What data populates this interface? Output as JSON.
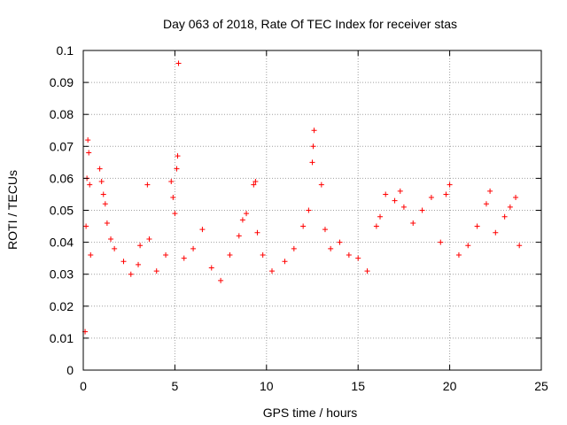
{
  "chart_data": {
    "type": "scatter",
    "title": "Day 063 of 2018, Rate Of TEC Index for receiver stas",
    "xlabel": "GPS time / hours",
    "ylabel": "ROTI / TECUs",
    "xlim": [
      0,
      25
    ],
    "ylim": [
      0,
      0.1
    ],
    "xticks": [
      {
        "value": 0,
        "label": "0"
      },
      {
        "value": 5,
        "label": "5"
      },
      {
        "value": 10,
        "label": "10"
      },
      {
        "value": 15,
        "label": "15"
      },
      {
        "value": 20,
        "label": "20"
      },
      {
        "value": 25,
        "label": "25"
      }
    ],
    "yticks": [
      {
        "value": 0,
        "label": "0"
      },
      {
        "value": 0.01,
        "label": "0.01"
      },
      {
        "value": 0.02,
        "label": "0.02"
      },
      {
        "value": 0.03,
        "label": "0.03"
      },
      {
        "value": 0.04,
        "label": "0.04"
      },
      {
        "value": 0.05,
        "label": "0.05"
      },
      {
        "value": 0.06,
        "label": "0.06"
      },
      {
        "value": 0.07,
        "label": "0.07"
      },
      {
        "value": 0.08,
        "label": "0.08"
      },
      {
        "value": 0.09,
        "label": "0.09"
      },
      {
        "value": 0.1,
        "label": "0.1"
      }
    ],
    "grid": true,
    "marker": "+",
    "color": "#ff0000",
    "series": [
      {
        "name": "stas",
        "points": [
          [
            0.1,
            0.012
          ],
          [
            0.15,
            0.045
          ],
          [
            0.2,
            0.06
          ],
          [
            0.25,
            0.072
          ],
          [
            0.3,
            0.068
          ],
          [
            0.35,
            0.058
          ],
          [
            0.4,
            0.036
          ],
          [
            0.9,
            0.063
          ],
          [
            1.0,
            0.059
          ],
          [
            1.1,
            0.055
          ],
          [
            1.2,
            0.052
          ],
          [
            1.3,
            0.046
          ],
          [
            1.5,
            0.041
          ],
          [
            1.7,
            0.038
          ],
          [
            2.2,
            0.034
          ],
          [
            2.6,
            0.03
          ],
          [
            3.0,
            0.033
          ],
          [
            3.1,
            0.039
          ],
          [
            3.5,
            0.058
          ],
          [
            3.6,
            0.041
          ],
          [
            4.0,
            0.031
          ],
          [
            4.5,
            0.036
          ],
          [
            4.8,
            0.059
          ],
          [
            4.9,
            0.054
          ],
          [
            5.0,
            0.049
          ],
          [
            5.1,
            0.063
          ],
          [
            5.15,
            0.067
          ],
          [
            5.2,
            0.096
          ],
          [
            5.5,
            0.035
          ],
          [
            6.0,
            0.038
          ],
          [
            6.5,
            0.044
          ],
          [
            7.0,
            0.032
          ],
          [
            7.5,
            0.028
          ],
          [
            8.0,
            0.036
          ],
          [
            8.5,
            0.042
          ],
          [
            8.7,
            0.047
          ],
          [
            8.9,
            0.049
          ],
          [
            9.3,
            0.058
          ],
          [
            9.4,
            0.059
          ],
          [
            9.5,
            0.043
          ],
          [
            9.8,
            0.036
          ],
          [
            10.3,
            0.031
          ],
          [
            11.0,
            0.034
          ],
          [
            11.5,
            0.038
          ],
          [
            12.0,
            0.045
          ],
          [
            12.3,
            0.05
          ],
          [
            12.5,
            0.065
          ],
          [
            12.55,
            0.07
          ],
          [
            12.6,
            0.075
          ],
          [
            13.0,
            0.058
          ],
          [
            13.2,
            0.044
          ],
          [
            13.5,
            0.038
          ],
          [
            14.0,
            0.04
          ],
          [
            14.5,
            0.036
          ],
          [
            15.0,
            0.035
          ],
          [
            15.5,
            0.031
          ],
          [
            16.0,
            0.045
          ],
          [
            16.2,
            0.048
          ],
          [
            16.5,
            0.055
          ],
          [
            17.0,
            0.053
          ],
          [
            17.3,
            0.056
          ],
          [
            17.5,
            0.051
          ],
          [
            18.0,
            0.046
          ],
          [
            18.5,
            0.05
          ],
          [
            19.0,
            0.054
          ],
          [
            19.5,
            0.04
          ],
          [
            19.8,
            0.055
          ],
          [
            20.0,
            0.058
          ],
          [
            20.5,
            0.036
          ],
          [
            21.0,
            0.039
          ],
          [
            21.5,
            0.045
          ],
          [
            22.0,
            0.052
          ],
          [
            22.2,
            0.056
          ],
          [
            22.5,
            0.043
          ],
          [
            23.0,
            0.048
          ],
          [
            23.3,
            0.051
          ],
          [
            23.6,
            0.054
          ],
          [
            23.8,
            0.039
          ]
        ]
      }
    ]
  }
}
